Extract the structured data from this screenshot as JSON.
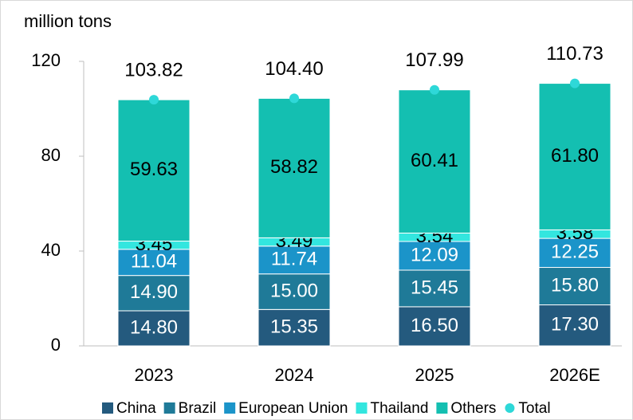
{
  "chart_data": {
    "type": "stacked_bar",
    "ylabel": "million tons",
    "categories": [
      "2023",
      "2024",
      "2025",
      "2026E"
    ],
    "ylim": [
      0,
      120
    ],
    "yticks": [
      0,
      40,
      80,
      120
    ],
    "legend": "bottom",
    "series": [
      {
        "name": "China",
        "color": "#245a7e",
        "values": [
          14.8,
          15.35,
          16.5,
          17.3
        ],
        "value_labels": [
          "14.80",
          "15.35",
          "16.50",
          "17.30"
        ]
      },
      {
        "name": "Brazil",
        "color": "#1f7a98",
        "values": [
          14.9,
          15.0,
          15.45,
          15.8
        ],
        "value_labels": [
          "14.90",
          "15.00",
          "15.45",
          "15.80"
        ]
      },
      {
        "name": "European Union",
        "color": "#1b94c9",
        "values": [
          11.04,
          11.74,
          12.09,
          12.25
        ],
        "value_labels": [
          "11.04",
          "11.74",
          "12.09",
          "12.25"
        ]
      },
      {
        "name": "Thailand",
        "color": "#33e6df",
        "values": [
          3.45,
          3.49,
          3.54,
          3.58
        ],
        "value_labels": [
          "3.45",
          "3.49",
          "3.54",
          "3.58"
        ]
      },
      {
        "name": "Others",
        "color": "#14bfb1",
        "values": [
          59.63,
          58.82,
          60.41,
          61.8
        ],
        "value_labels": [
          "59.63",
          "58.82",
          "60.41",
          "61.80"
        ]
      },
      {
        "name": "Total",
        "color": "#2ed8d8",
        "marker": "dot",
        "values": [
          103.82,
          104.4,
          107.99,
          110.73
        ],
        "value_labels": [
          "103.82",
          "104.40",
          "107.99",
          "110.73"
        ]
      }
    ]
  }
}
